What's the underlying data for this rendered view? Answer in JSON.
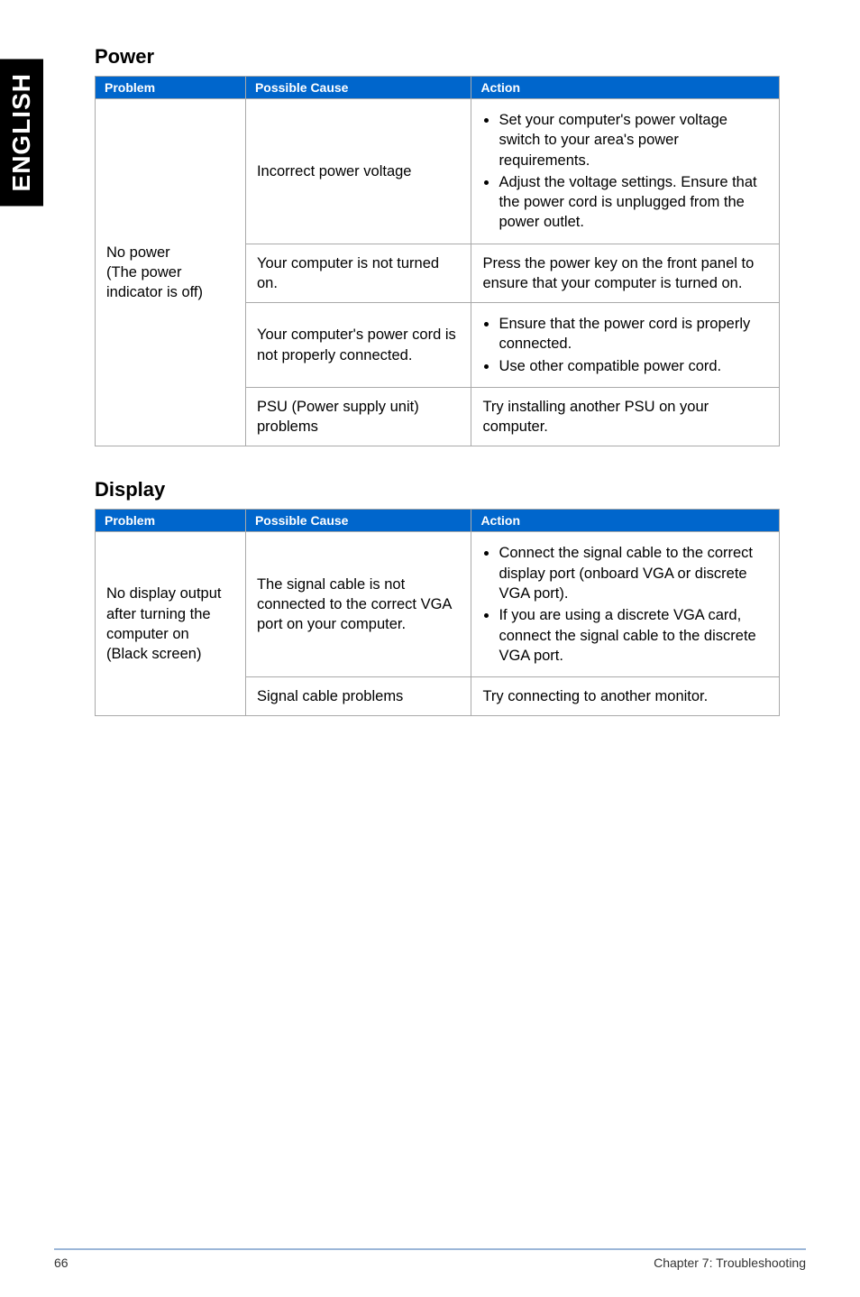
{
  "sideTab": "ENGLISH",
  "sections": [
    {
      "title": "Power",
      "headers": [
        "Problem",
        "Possible Cause",
        "Action"
      ],
      "rows": [
        {
          "problem": "No power\n(The power indicator is off)",
          "problemRowspan": 4,
          "cause": "Incorrect power voltage",
          "actionList": [
            "Set your computer's power voltage switch to your area's power requirements.",
            "Adjust the voltage settings. Ensure that the power cord is unplugged from the power outlet."
          ]
        },
        {
          "cause": "Your computer is not turned on.",
          "action": "Press the power key on the front panel to ensure that your computer is turned on."
        },
        {
          "cause": "Your computer's power cord is not properly connected.",
          "actionList": [
            "Ensure that the power cord is properly connected.",
            "Use other compatible power cord."
          ]
        },
        {
          "cause": "PSU (Power supply unit) problems",
          "action": "Try installing another PSU on your computer."
        }
      ]
    },
    {
      "title": "Display",
      "headers": [
        "Problem",
        "Possible Cause",
        "Action"
      ],
      "rows": [
        {
          "problem": "No display output after turning the computer on (Black screen)",
          "problemRowspan": 2,
          "cause": "The signal cable is not connected to the correct VGA port on your computer.",
          "actionList": [
            "Connect the signal cable to the correct display port (onboard VGA or discrete VGA port).",
            "If you are using a discrete VGA card, connect the signal cable to the discrete VGA port."
          ]
        },
        {
          "cause": "Signal cable problems",
          "action": "Try connecting to another monitor."
        }
      ]
    }
  ],
  "footer": {
    "pageNumber": "66",
    "chapter": "Chapter 7: Troubleshooting"
  },
  "colors": {
    "headerBg": "#0066cc",
    "borderColor": "#a9a9a9",
    "footerBorder": "#9bb6d8"
  }
}
